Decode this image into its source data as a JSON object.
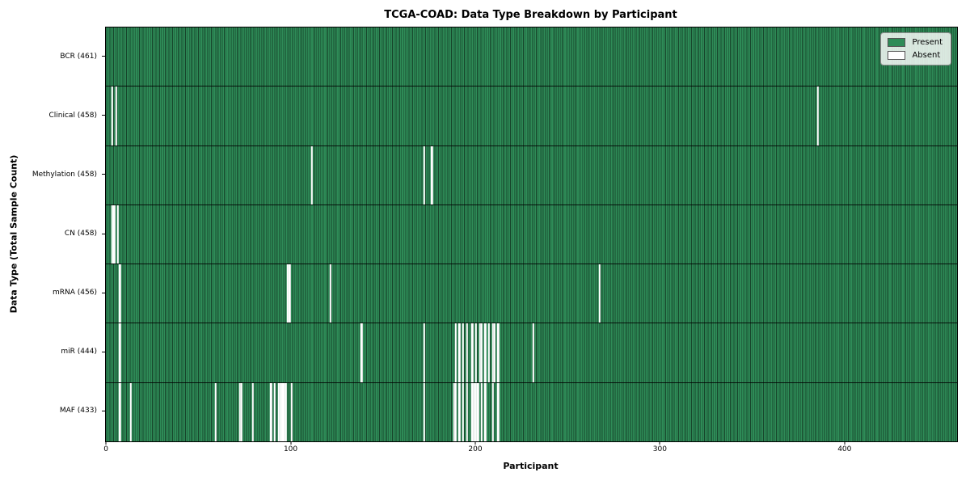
{
  "chart_data": {
    "type": "heatmap",
    "title": "TCGA-COAD: Data Type Breakdown by Participant",
    "xlabel": "Participant",
    "ylabel": "Data Type (Total Sample Count)",
    "n_participants": 461,
    "xlim": [
      -0.5,
      460.5
    ],
    "x_ticks": [
      0,
      100,
      200,
      300,
      400
    ],
    "grid": false,
    "legend_position": "upper right",
    "legend": [
      {
        "label": "Present",
        "color": "#2e8b57"
      },
      {
        "label": "Absent",
        "color": "#ffffff"
      }
    ],
    "colors": {
      "present": "#2e8b57",
      "bar_edge": "#1b4a30",
      "absent": "#ffffff",
      "row_separator": "#1a1a1a"
    },
    "rows": [
      {
        "label": "BCR (461)",
        "data_type": "BCR",
        "count": 461,
        "absent_participants": []
      },
      {
        "label": "Clinical (458)",
        "data_type": "Clinical",
        "count": 458,
        "absent_participants": [
          3,
          5,
          385
        ]
      },
      {
        "label": "Methylation (458)",
        "data_type": "Methylation",
        "count": 458,
        "absent_participants": [
          111,
          172,
          176
        ]
      },
      {
        "label": "CN (458)",
        "data_type": "CN",
        "count": 458,
        "absent_participants": [
          3,
          4,
          6
        ]
      },
      {
        "label": "mRNA (456)",
        "data_type": "mRNA",
        "count": 456,
        "absent_participants": [
          7,
          98,
          99,
          121,
          267
        ]
      },
      {
        "label": "miR (444)",
        "data_type": "miR",
        "count": 444,
        "absent_participants": [
          7,
          138,
          172,
          189,
          191,
          193,
          195,
          198,
          200,
          202,
          203,
          205,
          207,
          209,
          210,
          212,
          231
        ]
      },
      {
        "label": "MAF (433)",
        "data_type": "MAF",
        "count": 433,
        "absent_participants": [
          7,
          13,
          59,
          72,
          73,
          79,
          89,
          91,
          93,
          94,
          95,
          96,
          97,
          100,
          172,
          188,
          189,
          191,
          193,
          195,
          198,
          199,
          200,
          201,
          203,
          205,
          209,
          212
        ]
      }
    ]
  }
}
